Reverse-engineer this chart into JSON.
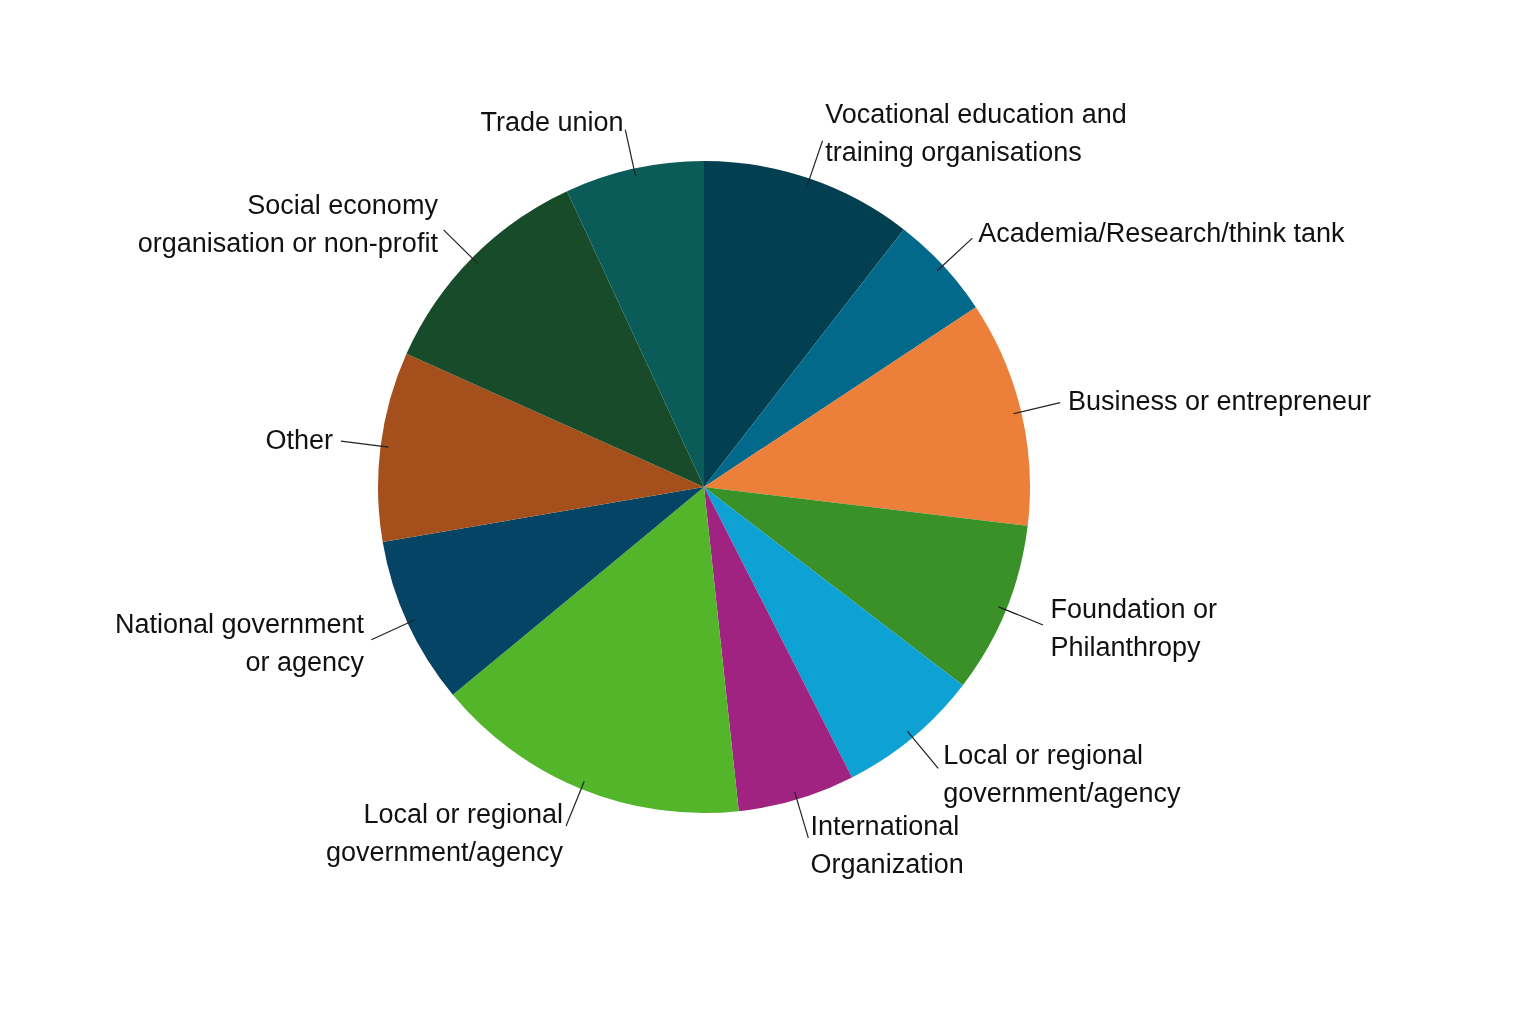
{
  "chart_data": {
    "type": "pie",
    "categories": [
      "Vocational education and\ntraining organisations",
      "Academia/Research/think tank",
      "Business or entrepreneur",
      "Foundation or\nPhilanthropy",
      "Local or regional\ngovernment/agency",
      "International\nOrganization",
      "Local or regional\ngovernment/agency",
      "National government\nor agency",
      "Other",
      "Social economy\norganisation or non-profit",
      "Trade union"
    ],
    "values": [
      10.5,
      5.2,
      11.2,
      8.5,
      7.1,
      5.8,
      15.7,
      8.3,
      9.4,
      11.4,
      6.9
    ],
    "colors": [
      "#023f50",
      "#02698a",
      "#ec7f3a",
      "#3a9128",
      "#0da1d4",
      "#a02281",
      "#52b52a",
      "#054465",
      "#a5501c",
      "#174b2a",
      "#0b5b59"
    ]
  }
}
